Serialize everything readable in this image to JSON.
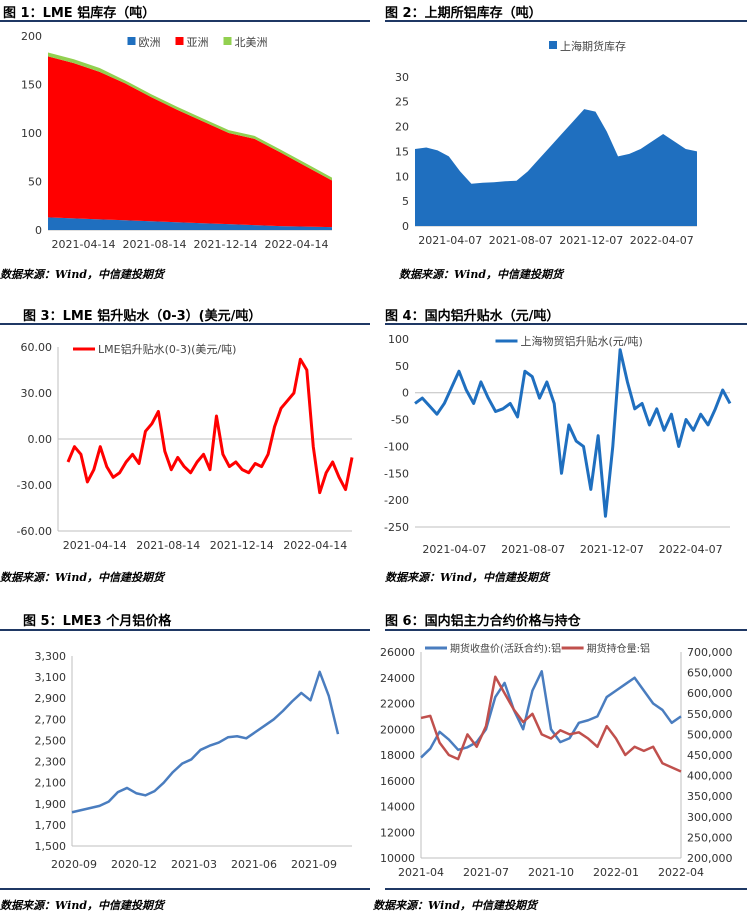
{
  "source_text": "数据来源：Wind，中信建投期货",
  "colors": {
    "rule": "#1f3864",
    "blue": "#1f6fbf",
    "red": "#ff0000",
    "green": "#92d050",
    "line_blue": "#4a7dbf",
    "line_red": "#c0504d"
  },
  "chart_data": [
    {
      "id": "c1",
      "title": "图 1：LME 铝库存（吨）",
      "type": "area",
      "stacked": true,
      "x_ticks": [
        "2021-04-14",
        "2021-08-14",
        "2021-12-14",
        "2022-04-14"
      ],
      "ylim": [
        0,
        200
      ],
      "y_ticks": [
        "0",
        "50",
        "100",
        "150",
        "200"
      ],
      "legend_position": "top-center",
      "series": [
        {
          "name": "欧洲",
          "color": "#1f6fbf",
          "values": [
            13,
            12,
            11,
            10,
            9,
            8,
            7,
            6,
            5,
            4,
            3.5,
            3
          ]
        },
        {
          "name": "亚洲",
          "color": "#ff0000",
          "values": [
            166,
            160,
            152,
            141,
            128,
            116,
            105,
            94,
            89,
            76,
            62,
            48
          ]
        },
        {
          "name": "北美洲",
          "color": "#92d050",
          "values": [
            4,
            4,
            4,
            3,
            3,
            3,
            3,
            3,
            3,
            3,
            3,
            3
          ]
        }
      ]
    },
    {
      "id": "c2",
      "title": "图 2：上期所铝库存（吨）",
      "type": "area",
      "x_ticks": [
        "2021-04-07",
        "2021-08-07",
        "2021-12-07",
        "2022-04-07"
      ],
      "ylim": [
        0,
        35
      ],
      "y_ticks": [
        "0",
        "5",
        "10",
        "15",
        "20",
        "25",
        "30"
      ],
      "legend_position": "top-center",
      "series": [
        {
          "name": "上海期货库存",
          "color": "#1f6fbf",
          "values": [
            15.5,
            15.8,
            15.2,
            14,
            11,
            8.5,
            8.7,
            8.8,
            9,
            9.1,
            11,
            13.5,
            16,
            18.5,
            21,
            23.5,
            23,
            19,
            14,
            14.5,
            15.5,
            17,
            18.5,
            17,
            15.5,
            15
          ]
        }
      ]
    },
    {
      "id": "c3",
      "title": "图 3：LME 铝升贴水（0-3）(美元/吨）",
      "type": "line",
      "x_ticks": [
        "2021-04-14",
        "2021-08-14",
        "2021-12-14",
        "2022-04-14"
      ],
      "ylim": [
        -60,
        60
      ],
      "y_ticks": [
        "-60.00",
        "-30.00",
        "0.00",
        "30.00",
        "60.00"
      ],
      "legend_position": "top-center",
      "series": [
        {
          "name": "LME铝升贴水(0-3)(美元/吨)",
          "color": "#ff0000",
          "values": [
            -15,
            -5,
            -10,
            -28,
            -20,
            -5,
            -18,
            -25,
            -22,
            -15,
            -10,
            -16,
            5,
            10,
            18,
            -8,
            -20,
            -12,
            -18,
            -22,
            -15,
            -10,
            -20,
            15,
            -10,
            -18,
            -15,
            -20,
            -22,
            -16,
            -18,
            -10,
            8,
            20,
            25,
            30,
            52,
            45,
            -5,
            -35,
            -22,
            -15,
            -25,
            -33,
            -12
          ]
        }
      ]
    },
    {
      "id": "c4",
      "title": "图 4：国内铝升贴水（元/吨）",
      "type": "line",
      "x_ticks": [
        "2021-04-07",
        "2021-08-07",
        "2021-12-07",
        "2022-04-07"
      ],
      "ylim": [
        -250,
        100
      ],
      "y_ticks": [
        "-250",
        "-200",
        "-150",
        "-100",
        "-50",
        "0",
        "50",
        "100"
      ],
      "legend_position": "top-center",
      "series": [
        {
          "name": "上海物贸铝升贴水(元/吨)",
          "color": "#1f6fbf",
          "values": [
            -20,
            -10,
            -25,
            -40,
            -20,
            10,
            40,
            5,
            -20,
            20,
            -10,
            -35,
            -30,
            -20,
            -45,
            40,
            30,
            -10,
            20,
            -20,
            -150,
            -60,
            -90,
            -100,
            -180,
            -80,
            -230,
            -100,
            80,
            20,
            -30,
            -20,
            -60,
            -30,
            -70,
            -40,
            -100,
            -50,
            -70,
            -40,
            -60,
            -30,
            5,
            -20
          ]
        }
      ]
    },
    {
      "id": "c5",
      "title": "图 5：LME3 个月铝价格",
      "type": "line",
      "x_ticks": [
        "2020-09",
        "2020-12",
        "2021-03",
        "2021-06",
        "2021-09"
      ],
      "ylim": [
        1500,
        3300
      ],
      "y_ticks": [
        "1,500",
        "1,700",
        "1,900",
        "2,100",
        "2,300",
        "2,500",
        "2,700",
        "2,900",
        "3,100",
        "3,300"
      ],
      "series": [
        {
          "name": "",
          "color": "#4a7dbf",
          "values": [
            1820,
            1840,
            1860,
            1880,
            1920,
            2010,
            2050,
            2000,
            1980,
            2020,
            2100,
            2200,
            2280,
            2320,
            2410,
            2450,
            2480,
            2530,
            2540,
            2520,
            2580,
            2640,
            2700,
            2780,
            2870,
            2950,
            2880,
            3150,
            2920,
            2560
          ]
        }
      ]
    },
    {
      "id": "c6",
      "title": "图 6：国内铝主力合约价格与持仓",
      "type": "line",
      "x_ticks": [
        "2021-04",
        "2021-07",
        "2021-10",
        "2022-01",
        "2022-04"
      ],
      "ylim_left": [
        10000,
        26000
      ],
      "y_ticks_left": [
        "10000",
        "12000",
        "14000",
        "16000",
        "18000",
        "20000",
        "22000",
        "24000",
        "26000"
      ],
      "ylim_right": [
        200000,
        700000
      ],
      "y_ticks_right": [
        "200,000",
        "250,000",
        "300,000",
        "350,000",
        "400,000",
        "450,000",
        "500,000",
        "550,000",
        "600,000",
        "650,000",
        "700,000"
      ],
      "legend_position": "top",
      "series": [
        {
          "name": "期货收盘价(活跃合约):铝",
          "axis": "left",
          "color": "#4a7dbf",
          "values": [
            17800,
            18500,
            19800,
            19200,
            18400,
            18600,
            19000,
            20000,
            22500,
            23600,
            21500,
            20000,
            23000,
            24500,
            20000,
            19000,
            19300,
            20500,
            20700,
            21000,
            22500,
            23000,
            23500,
            24000,
            23000,
            22000,
            21500,
            20500,
            21000
          ]
        },
        {
          "name": "期货持仓量:铝",
          "axis": "right",
          "color": "#c0504d",
          "values": [
            540000,
            545000,
            480000,
            450000,
            440000,
            500000,
            470000,
            520000,
            640000,
            600000,
            560000,
            530000,
            550000,
            500000,
            490000,
            510000,
            500000,
            505000,
            490000,
            470000,
            520000,
            490000,
            450000,
            470000,
            460000,
            470000,
            430000,
            420000,
            410000
          ]
        }
      ]
    }
  ]
}
